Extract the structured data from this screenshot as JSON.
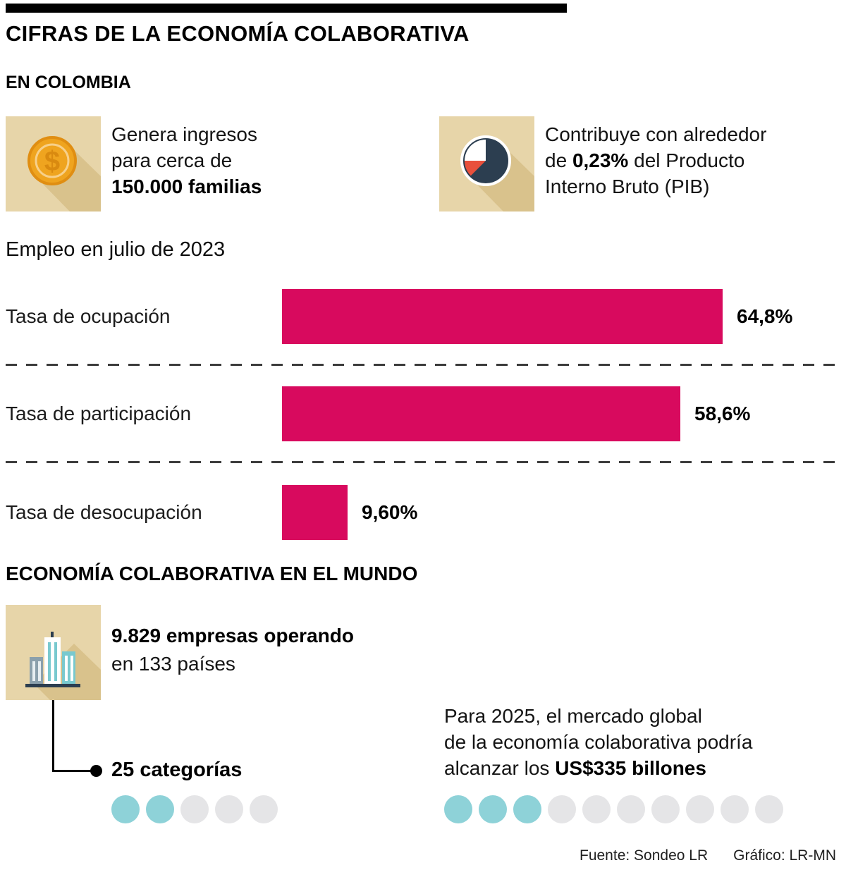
{
  "palette": {
    "bar": "#d80a5e",
    "icon_bg": "#e7d5a9",
    "icon_shadow": "#d9c28c",
    "teal_dot": "#8ed2d8",
    "gray_dot": "#e5e5e7",
    "coin_gold": "#efa41f",
    "pie_dark": "#2c3e50",
    "pie_red": "#e8503c",
    "building_teal": "#79c9cf"
  },
  "header": {
    "title": "CIFRAS DE LA ECONOMÍA COLABORATIVA"
  },
  "colombia": {
    "section_title": "EN COLOMBIA",
    "income_card": {
      "icon": "coin-icon",
      "line1": "Genera ingresos",
      "line2": "para cerca de",
      "line3_bold": "150.000 familias"
    },
    "gdp_card": {
      "icon": "pie-chart-icon",
      "line1": "Contribuye con alrededor",
      "line2_pre": "de ",
      "line2_bold": "0,23%",
      "line2_post": " del Producto",
      "line3": "Interno Bruto (PIB)"
    }
  },
  "employment": {
    "title": "Empleo en julio de 2023"
  },
  "world": {
    "section_title": "ECONOMÍA COLABORATIVA EN EL MUNDO",
    "companies_bold": "9.829 empresas operando",
    "companies_regular": "en 133 países",
    "categories_label": "25 categorías",
    "categories_dots": {
      "filled": 2,
      "total": 5
    },
    "market_line1": "Para 2025, el mercado global",
    "market_line2": "de la economía colaborativa podría",
    "market_line3_pre": "alcanzar los ",
    "market_line3_bold": "US$335 billones",
    "market_dots": {
      "filled": 3,
      "total": 10
    }
  },
  "footer": {
    "source": "Fuente: Sondeo LR",
    "credit": "Gráfico: LR-MN"
  },
  "chart_data": {
    "type": "bar",
    "orientation": "horizontal",
    "title": "Empleo en julio de 2023",
    "categories": [
      "Tasa de ocupación",
      "Tasa de participación",
      "Tasa de desocupación"
    ],
    "values": [
      64.8,
      58.6,
      9.6
    ],
    "value_labels": [
      "64,8%",
      "58,6%",
      "9,60%"
    ],
    "unit": "%",
    "bar_color": "#d80a5e",
    "xlim": [
      0,
      100
    ],
    "grid": false,
    "legend": false
  }
}
